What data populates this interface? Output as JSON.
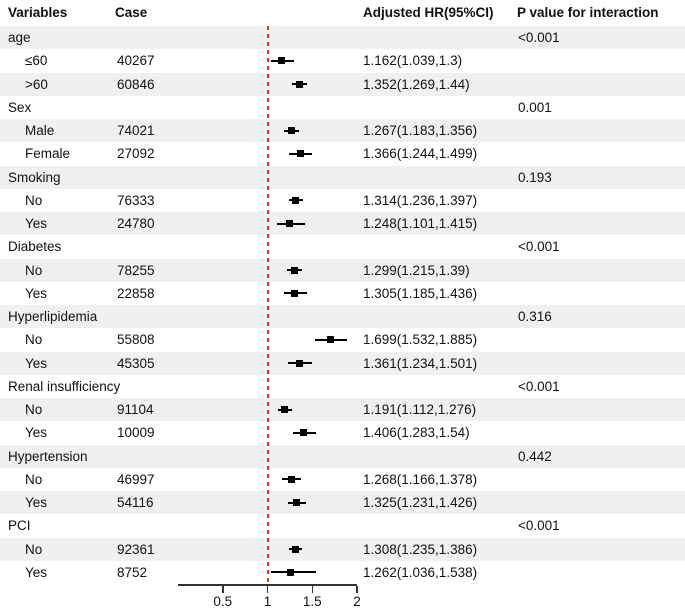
{
  "header": {
    "variables": "Variables",
    "case": "Case",
    "hr": "Adjusted HR(95%CI)",
    "p_value": "P value for interaction"
  },
  "colors": {
    "band": "#eef1f0",
    "refline": "#fb2b1a",
    "marker": "#000000",
    "axis": "#333333",
    "text": "#111111"
  },
  "chart_data": {
    "type": "forest",
    "columns": [
      "Variables",
      "Case",
      "Adjusted HR(95%CI)",
      "P value for interaction"
    ],
    "xaxis": {
      "min": 0,
      "max": 2,
      "ticks": [
        0.5,
        1,
        1.5,
        2
      ],
      "tick_labels": [
        "0.5",
        "1",
        "1.5",
        "2"
      ],
      "refline": 1
    },
    "rows": [
      {
        "type": "group",
        "label": "age",
        "p_value": "<0.001"
      },
      {
        "type": "item",
        "label": "≤60",
        "case": "40267",
        "hr": 1.162,
        "ci_low": 1.039,
        "ci_high": 1.3,
        "hr_text": "1.162(1.039,1.3)"
      },
      {
        "type": "item",
        "label": ">60",
        "case": "60846",
        "hr": 1.352,
        "ci_low": 1.269,
        "ci_high": 1.44,
        "hr_text": "1.352(1.269,1.44)"
      },
      {
        "type": "group",
        "label": "Sex",
        "p_value": "0.001"
      },
      {
        "type": "item",
        "label": "Male",
        "case": "74021",
        "hr": 1.267,
        "ci_low": 1.183,
        "ci_high": 1.356,
        "hr_text": "1.267(1.183,1.356)"
      },
      {
        "type": "item",
        "label": "Female",
        "case": "27092",
        "hr": 1.366,
        "ci_low": 1.244,
        "ci_high": 1.499,
        "hr_text": "1.366(1.244,1.499)"
      },
      {
        "type": "group",
        "label": "Smoking",
        "p_value": "0.193"
      },
      {
        "type": "item",
        "label": "No",
        "case": "76333",
        "hr": 1.314,
        "ci_low": 1.236,
        "ci_high": 1.397,
        "hr_text": "1.314(1.236,1.397)"
      },
      {
        "type": "item",
        "label": "Yes",
        "case": "24780",
        "hr": 1.248,
        "ci_low": 1.101,
        "ci_high": 1.415,
        "hr_text": "1.248(1.101,1.415)"
      },
      {
        "type": "group",
        "label": "Diabetes",
        "p_value": "<0.001"
      },
      {
        "type": "item",
        "label": "No",
        "case": "78255",
        "hr": 1.299,
        "ci_low": 1.215,
        "ci_high": 1.39,
        "hr_text": "1.299(1.215,1.39)"
      },
      {
        "type": "item",
        "label": "Yes",
        "case": "22858",
        "hr": 1.305,
        "ci_low": 1.185,
        "ci_high": 1.436,
        "hr_text": "1.305(1.185,1.436)"
      },
      {
        "type": "group",
        "label": "Hyperlipidemia",
        "p_value": "0.316"
      },
      {
        "type": "item",
        "label": "No",
        "case": "55808",
        "hr": 1.699,
        "ci_low": 1.532,
        "ci_high": 1.885,
        "hr_text": "1.699(1.532,1.885)"
      },
      {
        "type": "item",
        "label": "Yes",
        "case": "45305",
        "hr": 1.361,
        "ci_low": 1.234,
        "ci_high": 1.501,
        "hr_text": "1.361(1.234,1.501)"
      },
      {
        "type": "group",
        "label": "Renal insufficiency",
        "p_value": "<0.001"
      },
      {
        "type": "item",
        "label": "No",
        "case": "91104",
        "hr": 1.191,
        "ci_low": 1.112,
        "ci_high": 1.276,
        "hr_text": "1.191(1.112,1.276)"
      },
      {
        "type": "item",
        "label": "Yes",
        "case": "10009",
        "hr": 1.406,
        "ci_low": 1.283,
        "ci_high": 1.54,
        "hr_text": "1.406(1.283,1.54)"
      },
      {
        "type": "group",
        "label": "Hypertension",
        "p_value": "0.442"
      },
      {
        "type": "item",
        "label": "No",
        "case": "46997",
        "hr": 1.268,
        "ci_low": 1.166,
        "ci_high": 1.378,
        "hr_text": "1.268(1.166,1.378)"
      },
      {
        "type": "item",
        "label": "Yes",
        "case": "54116",
        "hr": 1.325,
        "ci_low": 1.231,
        "ci_high": 1.426,
        "hr_text": "1.325(1.231,1.426)"
      },
      {
        "type": "group",
        "label": "PCI",
        "p_value": "<0.001"
      },
      {
        "type": "item",
        "label": "No",
        "case": "92361",
        "hr": 1.308,
        "ci_low": 1.235,
        "ci_high": 1.386,
        "hr_text": "1.308(1.235,1.386)"
      },
      {
        "type": "item",
        "label": "Yes",
        "case": "8752",
        "hr": 1.262,
        "ci_low": 1.036,
        "ci_high": 1.538,
        "hr_text": "1.262(1.036,1.538)"
      }
    ]
  }
}
